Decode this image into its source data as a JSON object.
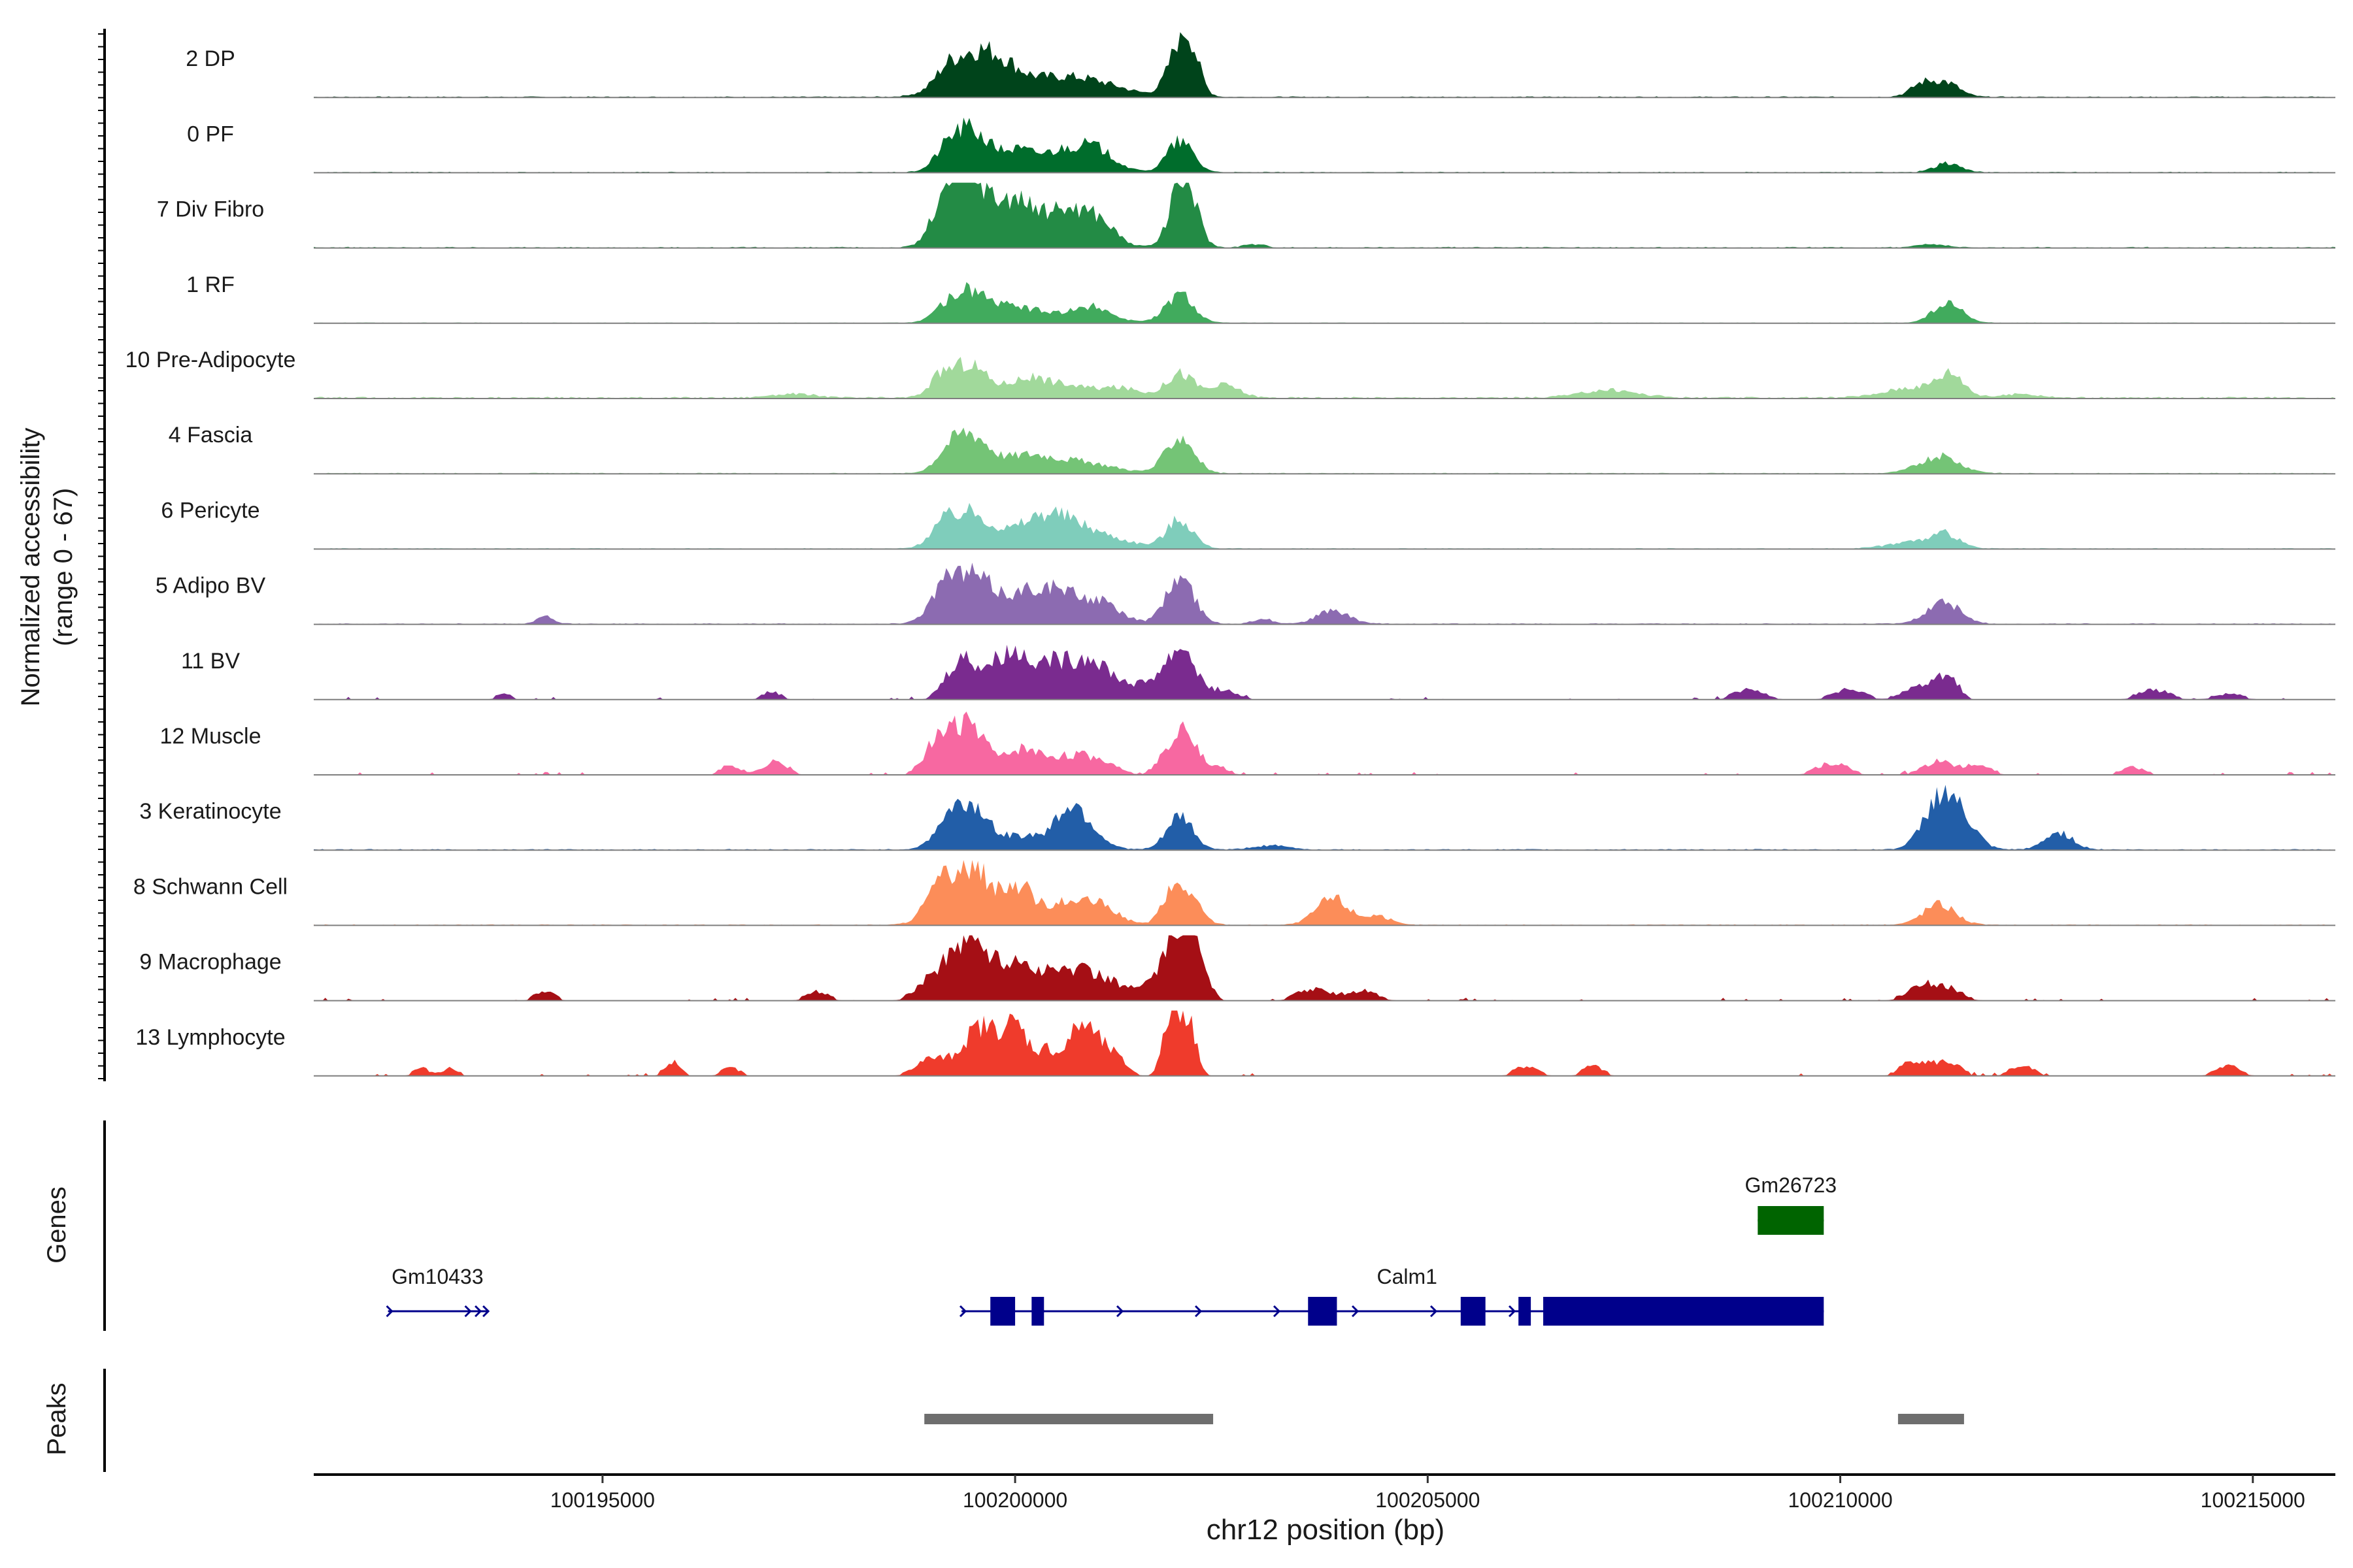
{
  "chart_data": {
    "type": "area",
    "title": "",
    "ylabel_line1": "Normalized accessibility",
    "ylabel_line2": "(range 0 - 67)",
    "xlabel": "chr12 position (bp)",
    "genes_label": "Genes",
    "peaks_label": "Peaks",
    "xlim": [
      100191500,
      100216000
    ],
    "ylim": [
      0,
      67
    ],
    "x_ticks": [
      100195000,
      100200000,
      100205000,
      100210000,
      100215000
    ],
    "x_tick_labels": [
      "100195000",
      "100200000",
      "100205000",
      "100210000",
      "100215000"
    ],
    "track_x_range": [
      100191500,
      100216000
    ],
    "tracks": [
      {
        "name": "2 DP",
        "color": "#00441b",
        "noise": 1.2,
        "sparse": false,
        "peaks": [
          [
            100199450,
            300,
            40
          ],
          [
            100199850,
            220,
            14
          ],
          [
            100200300,
            550,
            15
          ],
          [
            100200900,
            450,
            11
          ],
          [
            100202000,
            150,
            46
          ],
          [
            100202120,
            120,
            30
          ],
          [
            100211000,
            150,
            14
          ],
          [
            100211300,
            160,
            14
          ],
          [
            100199150,
            120,
            8
          ]
        ]
      },
      {
        "name": "0 PF",
        "color": "#006d2c",
        "noise": 1.0,
        "sparse": false,
        "peaks": [
          [
            100199450,
            220,
            44
          ],
          [
            100199150,
            150,
            14
          ],
          [
            100200000,
            200,
            20
          ],
          [
            100200500,
            260,
            18
          ],
          [
            100200950,
            250,
            24
          ],
          [
            100202000,
            160,
            32
          ],
          [
            100211300,
            160,
            10
          ]
        ]
      },
      {
        "name": "7 Div Fibro",
        "color": "#238b45",
        "noise": 1.2,
        "sparse": false,
        "peaks": [
          [
            100199300,
            200,
            50
          ],
          [
            100199500,
            220,
            52
          ],
          [
            100199050,
            140,
            14
          ],
          [
            100200000,
            200,
            45
          ],
          [
            100200550,
            260,
            37
          ],
          [
            100201000,
            220,
            26
          ],
          [
            100202000,
            140,
            56
          ],
          [
            100202150,
            120,
            26
          ],
          [
            100202900,
            120,
            4
          ],
          [
            100211100,
            160,
            4
          ]
        ]
      },
      {
        "name": "1 RF",
        "color": "#41ab5d",
        "noise": 0.8,
        "sparse": false,
        "peaks": [
          [
            100199450,
            230,
            34
          ],
          [
            100199100,
            150,
            8
          ],
          [
            100200000,
            220,
            13
          ],
          [
            100200700,
            420,
            12
          ],
          [
            100201000,
            150,
            8
          ],
          [
            100202000,
            170,
            30
          ],
          [
            100211300,
            180,
            20
          ]
        ]
      },
      {
        "name": "10 Pre-Adipocyte",
        "color": "#a1d99b",
        "noise": 1.8,
        "sparse": false,
        "peaks": [
          [
            100199450,
            200,
            34
          ],
          [
            100199100,
            150,
            20
          ],
          [
            100200100,
            250,
            17
          ],
          [
            100200600,
            320,
            13
          ],
          [
            100201300,
            250,
            10
          ],
          [
            100202000,
            170,
            26
          ],
          [
            100202550,
            180,
            14
          ],
          [
            100207200,
            350,
            9
          ],
          [
            100210900,
            350,
            12
          ],
          [
            100211350,
            160,
            22
          ],
          [
            100197300,
            250,
            5
          ],
          [
            100212200,
            200,
            5
          ]
        ]
      },
      {
        "name": "4 Fascia",
        "color": "#74c476",
        "noise": 1.0,
        "sparse": false,
        "peaks": [
          [
            100199450,
            220,
            40
          ],
          [
            100199150,
            150,
            12
          ],
          [
            100200100,
            280,
            14
          ],
          [
            100200700,
            450,
            13
          ],
          [
            100202000,
            170,
            38
          ],
          [
            100211200,
            250,
            18
          ]
        ]
      },
      {
        "name": "6 Pericyte",
        "color": "#7fcdbb",
        "noise": 1.0,
        "sparse": false,
        "peaks": [
          [
            100199450,
            250,
            36
          ],
          [
            100199100,
            150,
            16
          ],
          [
            100200350,
            350,
            30
          ],
          [
            100200900,
            450,
            14
          ],
          [
            100202000,
            160,
            30
          ],
          [
            100210900,
            300,
            8
          ],
          [
            100211300,
            160,
            13
          ]
        ]
      },
      {
        "name": "5 Adipo BV",
        "color": "#8c6bb1",
        "noise": 1.1,
        "sparse": false,
        "peaks": [
          [
            100199450,
            280,
            50
          ],
          [
            100199100,
            160,
            18
          ],
          [
            100200200,
            300,
            28
          ],
          [
            100200650,
            330,
            22
          ],
          [
            100201100,
            230,
            13
          ],
          [
            100202000,
            170,
            48
          ],
          [
            100203850,
            200,
            14
          ],
          [
            100211250,
            200,
            24
          ],
          [
            100194300,
            100,
            8
          ],
          [
            100203000,
            120,
            6
          ]
        ]
      },
      {
        "name": "11 BV",
        "color": "#7a2b8f",
        "noise": 0.6,
        "sparse": true,
        "peaks": [
          [
            100199350,
            180,
            42
          ],
          [
            100199750,
            170,
            20
          ],
          [
            100200000,
            200,
            35
          ],
          [
            100200500,
            280,
            38
          ],
          [
            100200950,
            180,
            30
          ],
          [
            100201300,
            200,
            14
          ],
          [
            100201800,
            200,
            24
          ],
          [
            100202050,
            150,
            42
          ],
          [
            100202500,
            180,
            10
          ],
          [
            100210100,
            200,
            10
          ],
          [
            100210950,
            200,
            13
          ],
          [
            100211300,
            130,
            24
          ],
          [
            100208900,
            200,
            10
          ],
          [
            100213800,
            200,
            10
          ],
          [
            100197050,
            120,
            8
          ],
          [
            100193800,
            100,
            6
          ],
          [
            100214700,
            200,
            6
          ]
        ]
      },
      {
        "name": "12 Muscle",
        "color": "#f768a1",
        "noise": 0.6,
        "sparse": true,
        "peaks": [
          [
            100199300,
            200,
            42
          ],
          [
            100199550,
            150,
            26
          ],
          [
            100199000,
            150,
            20
          ],
          [
            100200050,
            200,
            22
          ],
          [
            100200550,
            300,
            16
          ],
          [
            100201000,
            250,
            12
          ],
          [
            100201800,
            120,
            12
          ],
          [
            100202050,
            140,
            52
          ],
          [
            100202450,
            150,
            8
          ],
          [
            100196550,
            120,
            10
          ],
          [
            100197100,
            150,
            14
          ],
          [
            100209900,
            200,
            12
          ],
          [
            100211200,
            200,
            14
          ],
          [
            100211700,
            150,
            10
          ],
          [
            100213550,
            150,
            8
          ]
        ]
      },
      {
        "name": "3 Keratinocyte",
        "color": "#225ea8",
        "noise": 1.2,
        "sparse": false,
        "peaks": [
          [
            100199450,
            250,
            46
          ],
          [
            100199150,
            150,
            12
          ],
          [
            100200150,
            200,
            14
          ],
          [
            100200650,
            180,
            38
          ],
          [
            100200900,
            200,
            16
          ],
          [
            100202000,
            160,
            34
          ],
          [
            100203100,
            200,
            5
          ],
          [
            100211250,
            210,
            60
          ],
          [
            100211600,
            150,
            10
          ],
          [
            100212650,
            170,
            18
          ]
        ]
      },
      {
        "name": "8 Schwann Cell",
        "color": "#fc8d59",
        "noise": 1.0,
        "sparse": false,
        "peaks": [
          [
            100199450,
            280,
            60
          ],
          [
            100199050,
            170,
            20
          ],
          [
            100200050,
            150,
            28
          ],
          [
            100200550,
            350,
            22
          ],
          [
            100201050,
            220,
            14
          ],
          [
            100202050,
            170,
            36
          ],
          [
            100201850,
            110,
            14
          ],
          [
            100203850,
            200,
            28
          ],
          [
            100204400,
            150,
            10
          ],
          [
            100211200,
            200,
            22
          ]
        ]
      },
      {
        "name": "9 Macrophage",
        "color": "#a50f15",
        "noise": 0.8,
        "sparse": true,
        "peaks": [
          [
            100199450,
            230,
            64
          ],
          [
            100199000,
            200,
            20
          ],
          [
            100200000,
            200,
            30
          ],
          [
            100200550,
            350,
            28
          ],
          [
            100201050,
            300,
            16
          ],
          [
            100201700,
            200,
            14
          ],
          [
            100202000,
            160,
            66
          ],
          [
            100202200,
            130,
            36
          ],
          [
            100194300,
            120,
            10
          ],
          [
            100197600,
            140,
            10
          ],
          [
            100203600,
            200,
            12
          ],
          [
            100204200,
            200,
            10
          ],
          [
            100211000,
            200,
            14
          ],
          [
            100211300,
            200,
            10
          ]
        ]
      },
      {
        "name": "13 Lymphocyte",
        "color": "#ef3b2c",
        "noise": 0.0,
        "sparse": true,
        "peaks": [
          [
            100199000,
            200,
            18
          ],
          [
            100199450,
            160,
            28
          ],
          [
            100199650,
            150,
            30
          ],
          [
            100200000,
            180,
            52
          ],
          [
            100200400,
            100,
            22
          ],
          [
            100200750,
            150,
            40
          ],
          [
            100200950,
            150,
            24
          ],
          [
            100201200,
            150,
            18
          ],
          [
            100201900,
            100,
            64
          ],
          [
            100202100,
            100,
            52
          ],
          [
            100192800,
            100,
            8
          ],
          [
            100193150,
            100,
            8
          ],
          [
            100195850,
            100,
            14
          ],
          [
            100196550,
            120,
            8
          ],
          [
            100206200,
            150,
            10
          ],
          [
            100207000,
            130,
            10
          ],
          [
            100210900,
            160,
            16
          ],
          [
            100211300,
            160,
            14
          ],
          [
            100212200,
            160,
            10
          ],
          [
            100214700,
            160,
            10
          ]
        ]
      }
    ],
    "genes": [
      {
        "name": "Gm26723",
        "color": "#006400",
        "strand": "-",
        "start": 100209000,
        "end": 100209800,
        "exons": [
          [
            100209000,
            100209800
          ]
        ]
      },
      {
        "name": "Gm10433",
        "color": "#00008b",
        "strand": "+",
        "start": 100192400,
        "end": 100193600,
        "exons": []
      },
      {
        "name": "Calm1",
        "color": "#00008b",
        "strand": "+",
        "start": 100199350,
        "end": 100209800,
        "exons": [
          [
            100199700,
            100200000
          ],
          [
            100200200,
            100200350
          ],
          [
            100203550,
            100203900
          ],
          [
            100205400,
            100205700
          ],
          [
            100206100,
            100206250
          ],
          [
            100206400,
            100209800
          ]
        ]
      }
    ],
    "peaks_regions": [
      [
        100198900,
        100202400
      ],
      [
        100210700,
        100211500
      ]
    ],
    "peaks_color": "#6e6e6e"
  }
}
